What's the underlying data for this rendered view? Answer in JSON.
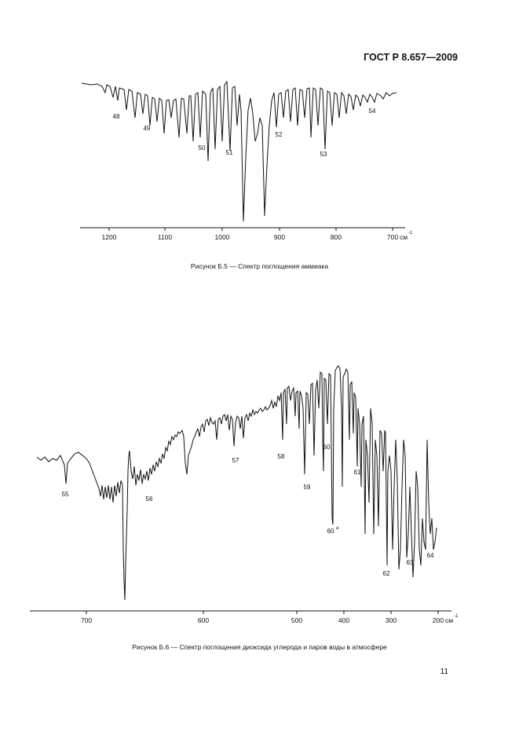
{
  "header": {
    "standard": "ГОСТ Р 8.657—2009"
  },
  "figure5": {
    "caption": "Рисунок Б.5 — Спектр поглощения аммиака",
    "unit": "см",
    "unit_exp": "-1",
    "ticks": [
      "1200",
      "1100",
      "1000",
      "900",
      "800",
      "700"
    ],
    "peak_labels": [
      "48",
      "49",
      "50",
      "51",
      "52",
      "53",
      "54"
    ]
  },
  "figure6": {
    "caption": "Рисунок Б.6 — Спектр поглощения диоксида углерода и паров воды в атмосфере",
    "unit": "см",
    "unit_exp": "-1",
    "ticks": [
      "700",
      "600",
      "500",
      "400",
      "300",
      "200"
    ],
    "peak_labels": [
      "55",
      "56",
      "57",
      "58",
      "59",
      "60",
      "61",
      "62",
      "63",
      "64"
    ],
    "peak_label_60a": "60",
    "peak_label_60a_sup": "a"
  },
  "page": {
    "number": "11"
  }
}
